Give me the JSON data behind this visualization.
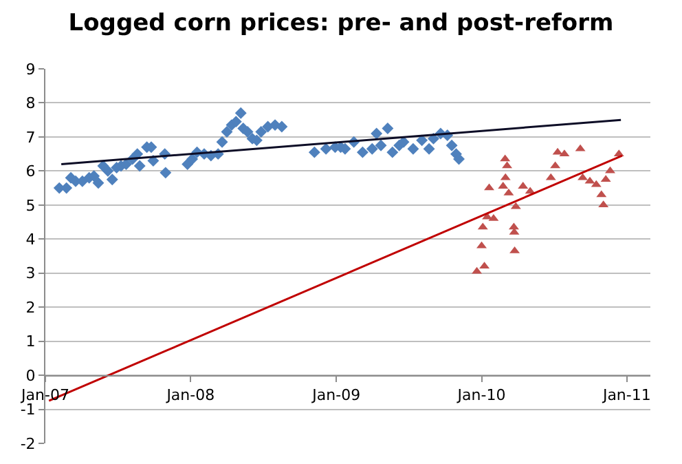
{
  "chart_data": {
    "type": "scatter",
    "title": "Logged corn prices: pre- and post-reform",
    "xlim": [
      "2007-01-01",
      "2011-03-01"
    ],
    "xticks": [
      {
        "value": "2007-01-01",
        "label": "Jan-07"
      },
      {
        "value": "2008-01-01",
        "label": "Jan-08"
      },
      {
        "value": "2009-01-01",
        "label": "Jan-09"
      },
      {
        "value": "2010-01-01",
        "label": "Jan-10"
      },
      {
        "value": "2011-01-01",
        "label": "Jan-11"
      }
    ],
    "ylim": [
      -2,
      9
    ],
    "yticks": [
      -2,
      -1,
      0,
      1,
      2,
      3,
      4,
      5,
      6,
      7,
      8,
      9
    ],
    "grid": "y",
    "series": [
      {
        "marker": "diamond",
        "color": "#4f81bd",
        "x": [
          "2007-02-05",
          "2007-02-23",
          "2007-03-06",
          "2007-03-18",
          "2007-04-04",
          "2007-04-21",
          "2007-05-03",
          "2007-05-14",
          "2007-05-26",
          "2007-06-07",
          "2007-06-18",
          "2007-06-29",
          "2007-07-10",
          "2007-07-23",
          "2007-08-08",
          "2007-08-20",
          "2007-08-26",
          "2007-09-13",
          "2007-09-24",
          "2007-09-29",
          "2007-10-28",
          "2007-10-30",
          "2007-12-24",
          "2008-01-05",
          "2008-01-17",
          "2008-02-04",
          "2008-02-21",
          "2008-03-10",
          "2008-03-20",
          "2008-04-01",
          "2008-04-13",
          "2008-04-24",
          "2008-05-06",
          "2008-05-12",
          "2008-05-23",
          "2008-06-04",
          "2008-06-15",
          "2008-06-26",
          "2008-07-13",
          "2008-07-31",
          "2008-08-17",
          "2008-11-07",
          "2008-12-06",
          "2008-12-29",
          "2009-01-12",
          "2009-01-23",
          "2009-02-14",
          "2009-03-08",
          "2009-04-01",
          "2009-04-12",
          "2009-04-23",
          "2009-05-10",
          "2009-05-22",
          "2009-06-08",
          "2009-06-19",
          "2009-07-13",
          "2009-08-04",
          "2009-08-22",
          "2009-09-02",
          "2009-09-20",
          "2009-10-07",
          "2009-10-18",
          "2009-10-29",
          "2009-11-05"
        ],
        "values": [
          5.5,
          5.5,
          5.8,
          5.7,
          5.7,
          5.8,
          5.85,
          5.65,
          6.15,
          6.0,
          5.75,
          6.1,
          6.15,
          6.2,
          6.35,
          6.5,
          6.15,
          6.7,
          6.7,
          6.3,
          6.5,
          5.95,
          6.2,
          6.35,
          6.55,
          6.5,
          6.45,
          6.5,
          6.85,
          7.15,
          7.35,
          7.45,
          7.7,
          7.25,
          7.15,
          6.95,
          6.9,
          7.15,
          7.3,
          7.35,
          7.3,
          6.55,
          6.65,
          6.7,
          6.7,
          6.65,
          6.85,
          6.55,
          6.65,
          7.1,
          6.75,
          7.25,
          6.55,
          6.75,
          6.85,
          6.65,
          6.9,
          6.65,
          6.95,
          7.1,
          7.05,
          6.75,
          6.5,
          6.35
        ]
      },
      {
        "marker": "triangle",
        "color": "#c0504d",
        "x": [
          "2009-12-20",
          "2010-01-08",
          "2010-01-01",
          "2010-01-04",
          "2010-01-15",
          "2010-01-31",
          "2010-01-20",
          "2010-03-01",
          "2010-03-06",
          "2010-03-02",
          "2010-02-24",
          "2010-03-10",
          "2010-03-28",
          "2010-03-23",
          "2010-03-24",
          "2010-03-25",
          "2010-04-15",
          "2010-05-03",
          "2010-06-24",
          "2010-07-05",
          "2010-07-11",
          "2010-07-28",
          "2010-09-06",
          "2010-09-12",
          "2010-09-30",
          "2010-10-16",
          "2010-10-29",
          "2010-11-03",
          "2010-11-09",
          "2010-11-20",
          "2010-12-08",
          "2010-12-12"
        ],
        "values": [
          3.05,
          3.2,
          3.8,
          4.35,
          4.65,
          4.6,
          5.5,
          6.35,
          6.15,
          5.8,
          5.55,
          5.35,
          4.95,
          4.35,
          4.2,
          3.65,
          5.55,
          5.4,
          5.8,
          6.15,
          6.55,
          6.5,
          6.65,
          5.8,
          5.7,
          5.6,
          5.3,
          5.0,
          5.75,
          6.0,
          null,
          6.5
        ]
      },
      {
        "type": "line",
        "marker": "none",
        "color": "#0d0d26",
        "x": [
          "2007-02-10",
          "2010-12-17"
        ],
        "values": [
          6.2,
          7.5
        ]
      },
      {
        "type": "line",
        "marker": "none",
        "color": "#c00000",
        "x": [
          "2007-01-10",
          "2010-12-20"
        ],
        "values": [
          -0.75,
          6.45
        ]
      }
    ]
  }
}
